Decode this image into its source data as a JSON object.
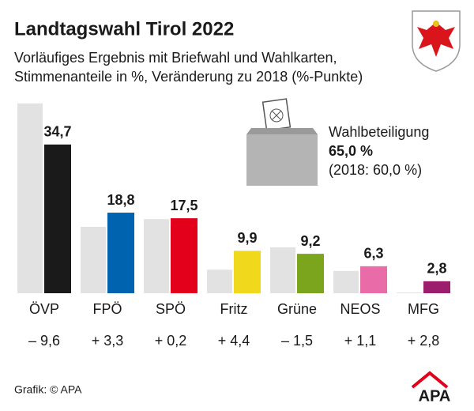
{
  "chart_data": {
    "type": "bar",
    "title": "Landtagswahl Tirol 2022",
    "subtitle": [
      "Vorläufiges Ergebnis mit Briefwahl und Wahlkarten,",
      "Stimmenanteile in %, Veränderung zu 2018 (%-Punkte)"
    ],
    "categories": [
      "ÖVP",
      "FPÖ",
      "SPÖ",
      "Fritz",
      "Grüne",
      "NEOS",
      "MFG"
    ],
    "series": [
      {
        "color": "#e2e2e2",
        "values": [
          44.3,
          15.5,
          17.3,
          5.5,
          10.7,
          5.2,
          0
        ]
      },
      {
        "colors": [
          "#1a1a1a",
          "#0063b0",
          "#e2001a",
          "#f0d91c",
          "#7aa51c",
          "#e96ba8",
          "#9b1d6b"
        ],
        "values": [
          34.7,
          18.8,
          17.5,
          9.9,
          9.2,
          6.3,
          2.8
        ],
        "value_labels": [
          "34,7",
          "18,8",
          "17,5",
          "9,9",
          "9,2",
          "6,3",
          "2,8"
        ]
      }
    ],
    "changes": {
      "values": [
        -9.6,
        3.3,
        0.2,
        4.4,
        -1.5,
        1.1,
        2.8
      ],
      "value_labels": [
        "– 9,6",
        "+ 3,3",
        "+ 0,2",
        "+ 4,4",
        "– 1,5",
        "+ 1,1",
        "+ 2,8"
      ]
    },
    "ylim": [
      0,
      45
    ],
    "turnout": {
      "label": "Wahlbeteiligung",
      "value": "65,0 %",
      "previous": "(2018: 60,0 %)"
    },
    "source": "Grafik: © APA",
    "logo": "APA"
  }
}
